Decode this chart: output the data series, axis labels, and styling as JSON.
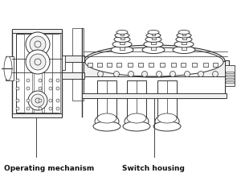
{
  "label_left": "Operating mechanism",
  "label_right": "Switch housing",
  "bg_color": "#ffffff",
  "lc": "#333333",
  "lc2": "#555555",
  "fig_width": 3.0,
  "fig_height": 2.26,
  "dpi": 100
}
